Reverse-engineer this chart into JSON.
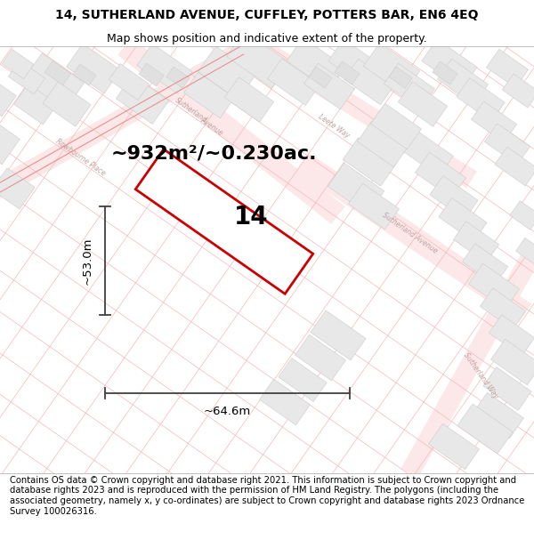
{
  "title": "14, SUTHERLAND AVENUE, CUFFLEY, POTTERS BAR, EN6 4EQ",
  "subtitle": "Map shows position and indicative extent of the property.",
  "footer": "Contains OS data © Crown copyright and database right 2021. This information is subject to Crown copyright and database rights 2023 and is reproduced with the permission of HM Land Registry. The polygons (including the associated geometry, namely x, y co-ordinates) are subject to Crown copyright and database rights 2023 Ordnance Survey 100026316.",
  "area_label": "~932m²/~0.230ac.",
  "property_number": "14",
  "width_label": "~64.6m",
  "height_label": "~53.0m",
  "map_bg": "#ffffff",
  "plot_edge": "#cc0000",
  "road_line_color": "#f0a0a0",
  "block_fill": "#e0e0e0",
  "block_edge": "#c8c8c8",
  "dim_color": "#404040",
  "title_fontsize": 10,
  "subtitle_fontsize": 9,
  "footer_fontsize": 7.2,
  "area_fontsize": 16,
  "num_fontsize": 20,
  "dim_fontsize": 9.5,
  "road_label_fontsize": 5.5,
  "road_label_color": "#c0a0a0"
}
